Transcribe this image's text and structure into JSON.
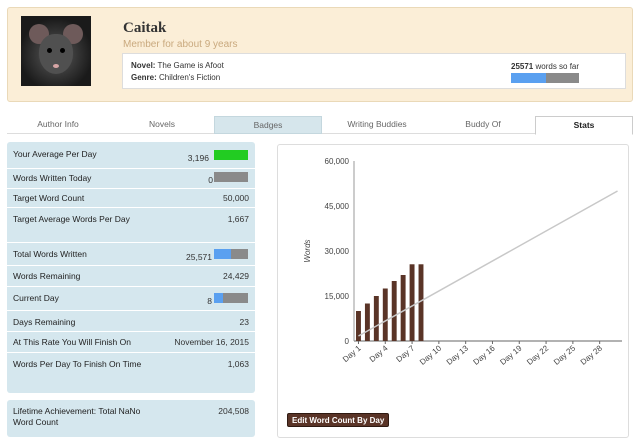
{
  "profile": {
    "username": "Caitak",
    "member_since": "Member for about 9 years",
    "novel_label": "Novel:",
    "novel_title": "The Game is Afoot",
    "genre_label": "Genre:",
    "genre": "Children's Fiction",
    "words_so_far": "25571",
    "words_so_far_suffix": " words so far",
    "progress_fraction": 0.51
  },
  "tabs": [
    "Author Info",
    "Novels",
    "Badges",
    "Writing Buddies",
    "Buddy Of",
    "Stats"
  ],
  "stats": [
    {
      "label": "Your Average Per Day",
      "value": "3,196",
      "bar": 1.0,
      "bar_color": "#22cc22"
    },
    {
      "label": "Words Written Today",
      "value": "0",
      "bar": 0.0,
      "bar_color": "#5aa0f0"
    },
    {
      "label": "Target Word Count",
      "value": "50,000"
    },
    {
      "label": "Target Average Words Per Day",
      "value": "1,667"
    },
    {
      "label": "Total Words Written",
      "value": "25,571",
      "bar": 0.51,
      "bar_color": "#5aa0f0"
    },
    {
      "label": "Words Remaining",
      "value": "24,429"
    },
    {
      "label": "Current Day",
      "value": "8",
      "bar": 0.27,
      "bar_color": "#5aa0f0"
    },
    {
      "label": "Days Remaining",
      "value": "23"
    },
    {
      "label": "At This Rate You Will Finish On",
      "value": "November 16, 2015"
    },
    {
      "label": "Words Per Day To Finish On Time",
      "value": "1,063"
    }
  ],
  "lifetime": {
    "label": "Lifetime Achievement: Total NaNo Word Count",
    "value": "204,508"
  },
  "chart_data": {
    "type": "bar",
    "ylabel": "Words",
    "xlabel": "",
    "ylim": [
      0,
      60000
    ],
    "yticks": [
      "0",
      "15,000",
      "30,000",
      "45,000",
      "60,000"
    ],
    "x_tick_labels": [
      "Day 1",
      "Day 4",
      "Day 7",
      "Day 10",
      "Day 13",
      "Day 16",
      "Day 19",
      "Day 22",
      "Day 25",
      "Day 28"
    ],
    "days": 30,
    "bar_color": "#5a3427",
    "series": [
      {
        "type": "bar",
        "values": [
          10000,
          12500,
          15000,
          17500,
          20000,
          22000,
          25571,
          25571
        ]
      },
      {
        "type": "line",
        "start": [
          1,
          1667
        ],
        "end": [
          30,
          50000
        ],
        "color": "#c8c8c8"
      }
    ],
    "button_label": "Edit Word Count By Day"
  }
}
